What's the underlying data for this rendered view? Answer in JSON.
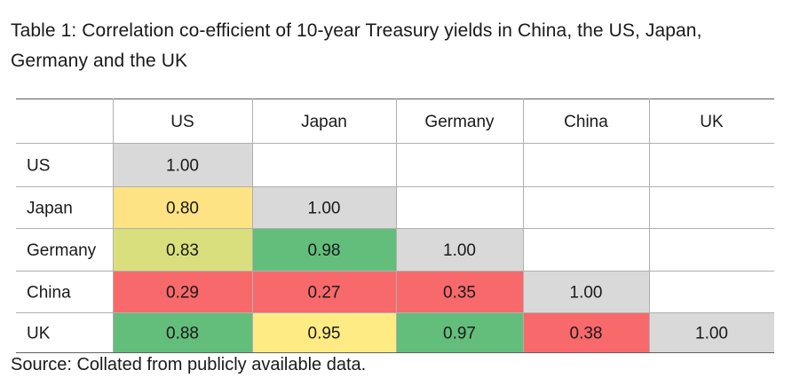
{
  "title": "Table 1: Correlation co-efficient of 10-year Treasury yields in China, the US, Japan, Germany and the UK",
  "source": "Source: Collated from publicly available data.",
  "chart_data": {
    "type": "heatmap",
    "title": "Table 1: Correlation co-efficient of 10-year Treasury yields in China, the US, Japan, Germany and the UK",
    "columns": [
      "US",
      "Japan",
      "Germany",
      "China",
      "UK"
    ],
    "rows": [
      "US",
      "Japan",
      "Germany",
      "China",
      "UK"
    ],
    "values": [
      [
        "1.00",
        "",
        "",
        "",
        ""
      ],
      [
        "0.80",
        "1.00",
        "",
        "",
        ""
      ],
      [
        "0.83",
        "0.98",
        "1.00",
        "",
        ""
      ],
      [
        "0.29",
        "0.27",
        "0.35",
        "1.00",
        ""
      ],
      [
        "0.88",
        "0.95",
        "0.97",
        "0.38",
        "1.00"
      ]
    ],
    "cell_colors": [
      [
        "#d9d9d9",
        "#ffffff",
        "#ffffff",
        "#ffffff",
        "#ffffff"
      ],
      [
        "#fde384",
        "#d9d9d9",
        "#ffffff",
        "#ffffff",
        "#ffffff"
      ],
      [
        "#dadf7e",
        "#63be7b",
        "#d9d9d9",
        "#ffffff",
        "#ffffff"
      ],
      [
        "#f8696b",
        "#f8696b",
        "#f8696b",
        "#d9d9d9",
        "#ffffff"
      ],
      [
        "#63be7b",
        "#ffeb84",
        "#63be7b",
        "#f8696b",
        "#d9d9d9"
      ]
    ],
    "colors": {
      "diagonal": "#d9d9d9",
      "green": "#63be7b",
      "yellow": "#ffeb84",
      "red": "#f8696b",
      "grid": "#b0b0b0",
      "grid_dark": "#606060"
    }
  }
}
